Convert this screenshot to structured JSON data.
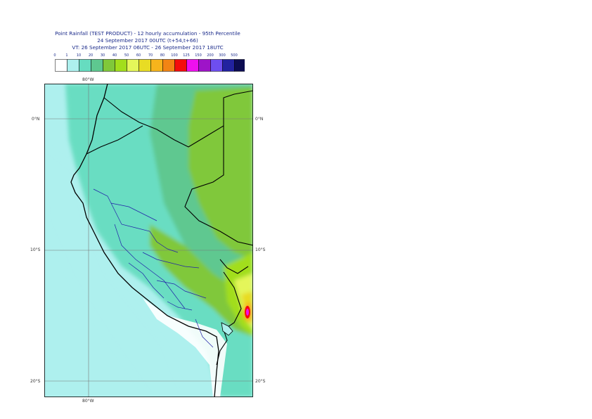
{
  "title": {
    "line1": "Point Rainfall (TEST PRODUCT) - 12 hourly accumulation - 95th Percentile",
    "line2": "24 September 2017 00UTC (t+54,t+66)",
    "line3": "VT: 26 September 2017 06UTC - 26 September 2017 18UTC"
  },
  "colorbar": {
    "labels": [
      "0",
      "1",
      "10",
      "20",
      "30",
      "40",
      "50",
      "60",
      "70",
      "80",
      "100",
      "125",
      "150",
      "200",
      "300",
      "500"
    ],
    "colors": [
      "#ffffff",
      "#aef0ee",
      "#66dcc0",
      "#5ec890",
      "#80c83a",
      "#a2de1c",
      "#e4f65a",
      "#e8dc24",
      "#f6b41c",
      "#f28414",
      "#f40c0c",
      "#ee10ee",
      "#9e14c8",
      "#6e4ef0",
      "#2222a0",
      "#0c0c52"
    ]
  },
  "map": {
    "background_color": "#aef0ee",
    "lon_labels": {
      "top": "80°W",
      "bottom": "80°W"
    },
    "lat_labels": {
      "left": [
        "0°N",
        "10°S",
        "20°S"
      ],
      "right": [
        "0°N",
        "10°S",
        "20°S"
      ]
    }
  }
}
